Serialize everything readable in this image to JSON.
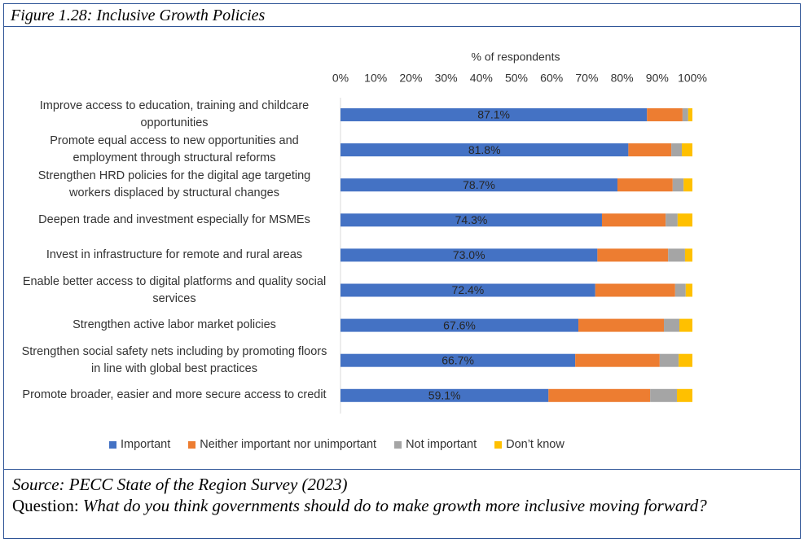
{
  "figure": {
    "title": "Figure 1.28: Inclusive Growth Policies",
    "source": "Source: PECC State of the Region Survey (2023)",
    "question_label": "Question:",
    "question": "What do you think governments should do to make growth more inclusive moving forward?"
  },
  "chart_data": {
    "type": "bar",
    "orientation": "horizontal",
    "stacked": true,
    "x_label": "% of respondents",
    "categories": [
      "Improve access to education, training and childcare opportunities",
      "Promote equal access to new opportunities and employment through structural reforms",
      "Strengthen HRD policies for the digital age targeting workers displaced by structural changes",
      "Deepen trade and investment especially for MSMEs",
      "Invest in infrastructure for remote and rural areas",
      "Enable better access to digital platforms and quality social services",
      "Strengthen active labor market policies",
      "Strengthen social safety nets including by promoting floors in line with global best practices",
      "Promote broader, easier and more secure access to credit"
    ],
    "series": [
      {
        "name": "Important",
        "color": "#4472c4",
        "values": [
          87.1,
          81.8,
          78.7,
          74.3,
          73.0,
          72.4,
          67.6,
          66.7,
          59.1
        ],
        "value_labels": [
          "87.1%",
          "81.8%",
          "78.7%",
          "74.3%",
          "73.0%",
          "72.4%",
          "67.6%",
          "66.7%",
          "59.1%"
        ]
      },
      {
        "name": "Neither important nor unimportant",
        "color": "#ed7d31",
        "values": [
          10.1,
          12.2,
          15.7,
          18.1,
          20.1,
          22.7,
          24.3,
          24.0,
          28.9
        ]
      },
      {
        "name": "Not important",
        "color": "#a5a5a5",
        "values": [
          1.6,
          3.0,
          3.1,
          3.4,
          4.8,
          3.0,
          4.4,
          5.4,
          7.6
        ]
      },
      {
        "name": "Don’t know",
        "color": "#ffc000",
        "values": [
          1.2,
          3.0,
          2.5,
          4.2,
          2.1,
          1.9,
          3.7,
          3.9,
          4.4
        ]
      }
    ],
    "xlim": [
      0,
      100
    ],
    "xticks": [
      {
        "value": 0,
        "label": "0%"
      },
      {
        "value": 10,
        "label": "10%"
      },
      {
        "value": 20,
        "label": "20%"
      },
      {
        "value": 30,
        "label": "30%"
      },
      {
        "value": 40,
        "label": "40%"
      },
      {
        "value": 50,
        "label": "50%"
      },
      {
        "value": 60,
        "label": "60%"
      },
      {
        "value": 70,
        "label": "70%"
      },
      {
        "value": 80,
        "label": "80%"
      },
      {
        "value": 90,
        "label": "90%"
      },
      {
        "value": 100,
        "label": "100%"
      }
    ],
    "legend": "bottom"
  }
}
